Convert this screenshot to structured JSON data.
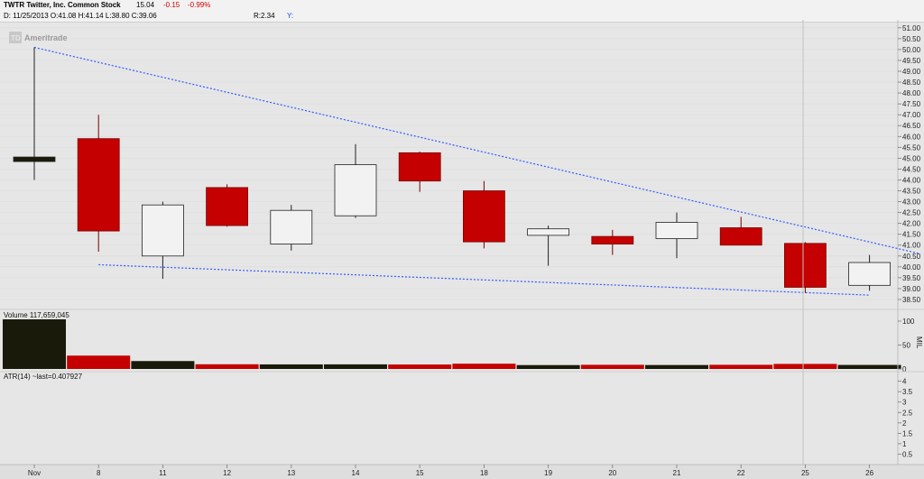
{
  "header": {
    "ticker": "TWTR Twitter, Inc. Common Stock",
    "last": "15.04",
    "change": "-0.15",
    "change_pct": "-0.99%",
    "ohlc": "D: 11/25/2013 O:41.08 H:41.14 L:38.80 C:39.06",
    "r": "R:2.34",
    "y_icon": "Y:"
  },
  "watermark": "Ameritrade",
  "colors": {
    "down_fill": "#c40000",
    "up_fill": "#f2f2f2",
    "neutral_fill": "#1a1a0a",
    "trendline": "#2f5bff",
    "background": "#e6e6e6"
  },
  "chart_data": [
    {
      "type": "candlestick",
      "x_tick_labels": [
        "Nov",
        "8",
        "11",
        "12",
        "13",
        "14",
        "15",
        "18",
        "19",
        "20",
        "21",
        "22",
        "25",
        "26"
      ],
      "ohlc": [
        {
          "date": "Nov",
          "open": 44.95,
          "high": 50.1,
          "low": 44.0,
          "close": 44.95,
          "color": "neutral"
        },
        {
          "date": "8",
          "open": 45.9,
          "high": 47.0,
          "low": 40.7,
          "close": 41.65,
          "color": "down"
        },
        {
          "date": "11",
          "open": 40.5,
          "high": 43.0,
          "low": 39.45,
          "close": 42.85,
          "color": "up"
        },
        {
          "date": "12",
          "open": 43.65,
          "high": 43.8,
          "low": 41.85,
          "close": 41.9,
          "color": "down"
        },
        {
          "date": "13",
          "open": 41.05,
          "high": 42.85,
          "low": 40.75,
          "close": 42.6,
          "color": "up"
        },
        {
          "date": "14",
          "open": 42.35,
          "high": 45.65,
          "low": 42.25,
          "close": 44.7,
          "color": "up"
        },
        {
          "date": "15",
          "open": 45.25,
          "high": 45.3,
          "low": 43.45,
          "close": 43.95,
          "color": "down"
        },
        {
          "date": "18",
          "open": 43.5,
          "high": 43.95,
          "low": 40.85,
          "close": 41.15,
          "color": "down"
        },
        {
          "date": "19",
          "open": 41.45,
          "high": 41.9,
          "low": 40.05,
          "close": 41.75,
          "color": "up"
        },
        {
          "date": "20",
          "open": 41.4,
          "high": 41.7,
          "low": 40.55,
          "close": 41.05,
          "color": "down"
        },
        {
          "date": "21",
          "open": 41.3,
          "high": 42.5,
          "low": 40.4,
          "close": 42.05,
          "color": "up"
        },
        {
          "date": "22",
          "open": 41.8,
          "high": 42.3,
          "low": 41.0,
          "close": 41.0,
          "color": "down"
        },
        {
          "date": "25",
          "open": 41.08,
          "high": 41.14,
          "low": 38.8,
          "close": 39.06,
          "color": "down"
        },
        {
          "date": "26",
          "open": 39.15,
          "high": 40.55,
          "low": 38.9,
          "close": 40.2,
          "color": "up"
        }
      ],
      "ylim": [
        38.25,
        51.2
      ],
      "y_ticks": [
        "38.50",
        "39.00",
        "39.50",
        "40.00",
        "40.50",
        "41.00",
        "41.50",
        "42.00",
        "42.50",
        "43.00",
        "43.50",
        "44.00",
        "44.50",
        "45.00",
        "45.50",
        "46.00",
        "46.50",
        "47.00",
        "47.50",
        "48.00",
        "48.50",
        "49.00",
        "49.50",
        "50.00",
        "50.50",
        "51.00"
      ],
      "trendlines": [
        {
          "from": {
            "date": "Nov",
            "value": 50.1
          },
          "to": {
            "date": "after 26",
            "value": 40.6
          },
          "style": "dotted"
        },
        {
          "from": {
            "date": "8",
            "value": 40.1
          },
          "to": {
            "date": "26",
            "value": 38.7
          },
          "style": "dotted"
        }
      ]
    },
    {
      "type": "bar",
      "title": "Volume 117,659,045",
      "categories": [
        "Nov",
        "8",
        "11",
        "12",
        "13",
        "14",
        "15",
        "18",
        "19",
        "20",
        "21",
        "22",
        "25",
        "26"
      ],
      "values": [
        117.7,
        27.9,
        16.5,
        9.8,
        9.5,
        9.6,
        9.3,
        11.0,
        8.1,
        8.7,
        8.2,
        8.7,
        10.5,
        8.4
      ],
      "colors": [
        "neutral",
        "down",
        "neutral",
        "down",
        "neutral",
        "neutral",
        "down",
        "down",
        "neutral",
        "down",
        "neutral",
        "down",
        "down",
        "neutral"
      ],
      "ylim": [
        0,
        100
      ],
      "y_ticks": [
        "0",
        "50",
        "100"
      ],
      "unit_label": "MIL"
    },
    {
      "type": "line",
      "title": "ATR(14) ~last=0.407927",
      "ylim": [
        0,
        4.2
      ],
      "y_ticks": [
        "0.5",
        "1",
        "1.5",
        "2",
        "2.5",
        "3",
        "3.5",
        "4"
      ]
    }
  ]
}
